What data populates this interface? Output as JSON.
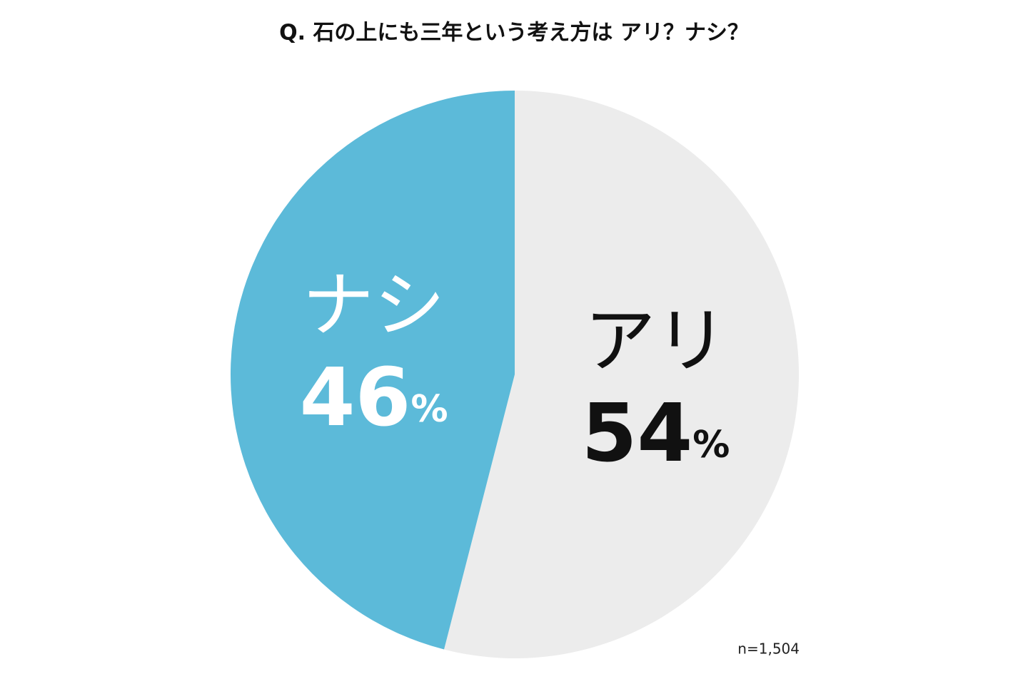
{
  "chart_data": {
    "type": "pie",
    "title": "Q. 石の上にも三年という考え方は アリ？ナシ？",
    "categories": [
      "アリ",
      "ナシ"
    ],
    "values": [
      54,
      46
    ],
    "value_labels": [
      "54%",
      "46%"
    ],
    "colors": [
      "#ececec",
      "#5cbad9"
    ],
    "label_colors": [
      "#111111",
      "#ffffff"
    ],
    "note": "n=1,504"
  }
}
